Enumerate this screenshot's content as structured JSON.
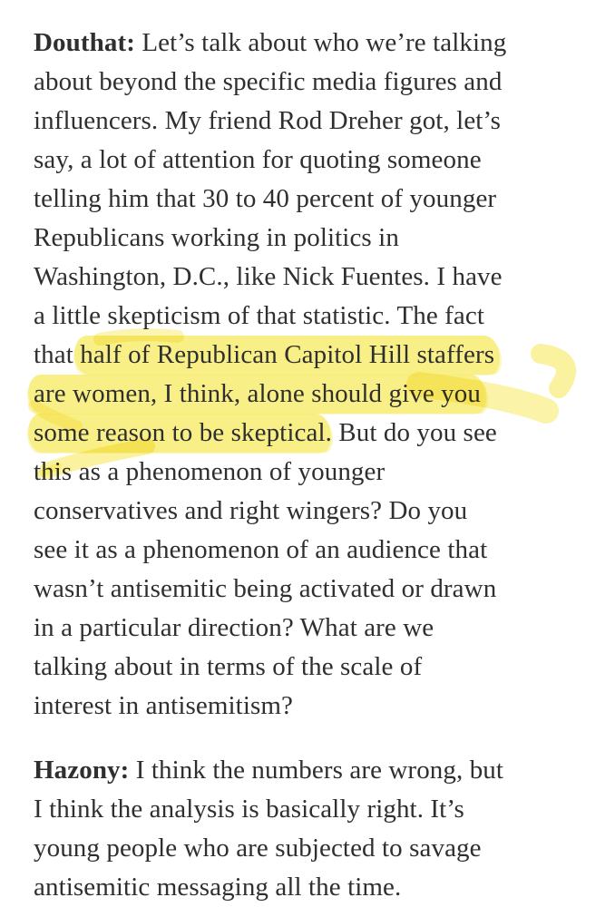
{
  "page": {
    "background": "#ffffff",
    "text_color": "#2f2f2f"
  },
  "highlight": {
    "color": "#f6e53e",
    "style": "hand-drawn-marker",
    "highlighted_text": "half of Republican Capitol Hill staffers are women, I think, alone should give you some reason to be skeptical"
  },
  "transcript": {
    "speakers": [
      "Douthat",
      "Hazony"
    ],
    "paragraphs": [
      {
        "speaker": "Douthat",
        "lines": [
          [
            {
              "t": "Douthat:",
              "b": true
            },
            {
              "t": " Let’s talk about who we’re talking"
            }
          ],
          [
            {
              "t": "about beyond the specific media figures and"
            }
          ],
          [
            {
              "t": "influencers. My friend Rod Dreher got, let’s"
            }
          ],
          [
            {
              "t": "say, a lot of attention for quoting someone"
            }
          ],
          [
            {
              "t": "telling him that 30 to 40 percent of younger"
            }
          ],
          [
            {
              "t": "Republicans working in politics in"
            }
          ],
          [
            {
              "t": "Washington, D.C., like Nick Fuentes. I have"
            }
          ],
          [
            {
              "t": "a little skepticism of that statistic. The fact"
            }
          ],
          [
            {
              "t": "that "
            },
            {
              "t": "half of Republican Capitol Hill staffers",
              "hl": true
            }
          ],
          [
            {
              "t": "are women, I think, alone should give you",
              "hl": true
            }
          ],
          [
            {
              "t": "some reason to be skeptical",
              "hl": true
            },
            {
              "t": ". But do you see"
            }
          ],
          [
            {
              "t": "this as a phenomenon of younger"
            }
          ],
          [
            {
              "t": "conservatives and right wingers? Do you"
            }
          ],
          [
            {
              "t": "see it as a phenomenon of an audience that"
            }
          ],
          [
            {
              "t": "wasn’t antisemitic being activated or drawn"
            }
          ],
          [
            {
              "t": "in a particular direction? What are we"
            }
          ],
          [
            {
              "t": "talking about in terms of the scale of"
            }
          ],
          [
            {
              "t": "interest in antisemitism?"
            }
          ]
        ]
      },
      {
        "speaker": "Hazony",
        "lines": [
          [
            {
              "t": "Hazony:",
              "b": true
            },
            {
              "t": " I think the numbers are wrong, but"
            }
          ],
          [
            {
              "t": "I think the analysis is basically right. It’s"
            }
          ],
          [
            {
              "t": "young people who are subjected to savage"
            }
          ],
          [
            {
              "t": "antisemitic messaging all the time."
            }
          ]
        ]
      }
    ]
  }
}
